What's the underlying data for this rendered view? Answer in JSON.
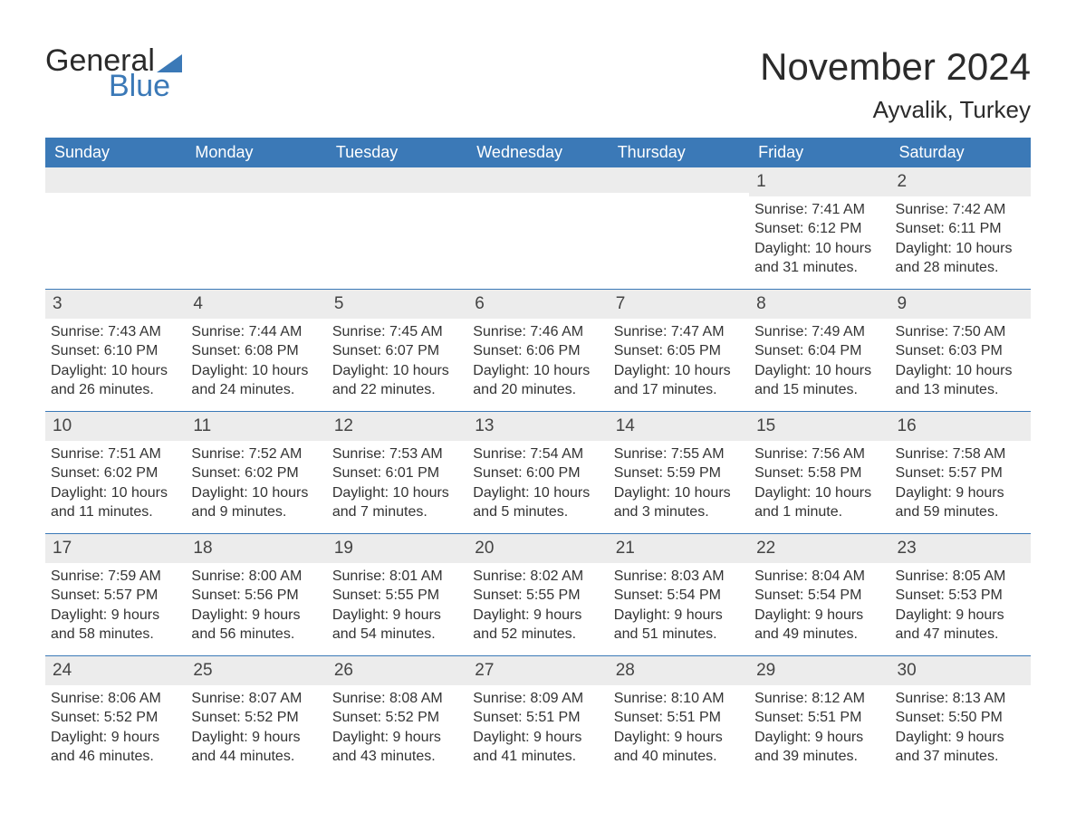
{
  "brand": {
    "name1": "General",
    "name2": "Blue",
    "accent": "#3b79b7"
  },
  "title": "November 2024",
  "location": "Ayvalik, Turkey",
  "colors": {
    "header_bg": "#3b79b7",
    "header_text": "#ffffff",
    "daynum_bg": "#ececec",
    "text": "#333333",
    "page_bg": "#ffffff",
    "row_border": "#3b79b7"
  },
  "weekdays": [
    "Sunday",
    "Monday",
    "Tuesday",
    "Wednesday",
    "Thursday",
    "Friday",
    "Saturday"
  ],
  "weeks": [
    [
      null,
      null,
      null,
      null,
      null,
      {
        "n": "1",
        "sunrise": "7:41 AM",
        "sunset": "6:12 PM",
        "daylight": "10 hours and 31 minutes."
      },
      {
        "n": "2",
        "sunrise": "7:42 AM",
        "sunset": "6:11 PM",
        "daylight": "10 hours and 28 minutes."
      }
    ],
    [
      {
        "n": "3",
        "sunrise": "7:43 AM",
        "sunset": "6:10 PM",
        "daylight": "10 hours and 26 minutes."
      },
      {
        "n": "4",
        "sunrise": "7:44 AM",
        "sunset": "6:08 PM",
        "daylight": "10 hours and 24 minutes."
      },
      {
        "n": "5",
        "sunrise": "7:45 AM",
        "sunset": "6:07 PM",
        "daylight": "10 hours and 22 minutes."
      },
      {
        "n": "6",
        "sunrise": "7:46 AM",
        "sunset": "6:06 PM",
        "daylight": "10 hours and 20 minutes."
      },
      {
        "n": "7",
        "sunrise": "7:47 AM",
        "sunset": "6:05 PM",
        "daylight": "10 hours and 17 minutes."
      },
      {
        "n": "8",
        "sunrise": "7:49 AM",
        "sunset": "6:04 PM",
        "daylight": "10 hours and 15 minutes."
      },
      {
        "n": "9",
        "sunrise": "7:50 AM",
        "sunset": "6:03 PM",
        "daylight": "10 hours and 13 minutes."
      }
    ],
    [
      {
        "n": "10",
        "sunrise": "7:51 AM",
        "sunset": "6:02 PM",
        "daylight": "10 hours and 11 minutes."
      },
      {
        "n": "11",
        "sunrise": "7:52 AM",
        "sunset": "6:02 PM",
        "daylight": "10 hours and 9 minutes."
      },
      {
        "n": "12",
        "sunrise": "7:53 AM",
        "sunset": "6:01 PM",
        "daylight": "10 hours and 7 minutes."
      },
      {
        "n": "13",
        "sunrise": "7:54 AM",
        "sunset": "6:00 PM",
        "daylight": "10 hours and 5 minutes."
      },
      {
        "n": "14",
        "sunrise": "7:55 AM",
        "sunset": "5:59 PM",
        "daylight": "10 hours and 3 minutes."
      },
      {
        "n": "15",
        "sunrise": "7:56 AM",
        "sunset": "5:58 PM",
        "daylight": "10 hours and 1 minute."
      },
      {
        "n": "16",
        "sunrise": "7:58 AM",
        "sunset": "5:57 PM",
        "daylight": "9 hours and 59 minutes."
      }
    ],
    [
      {
        "n": "17",
        "sunrise": "7:59 AM",
        "sunset": "5:57 PM",
        "daylight": "9 hours and 58 minutes."
      },
      {
        "n": "18",
        "sunrise": "8:00 AM",
        "sunset": "5:56 PM",
        "daylight": "9 hours and 56 minutes."
      },
      {
        "n": "19",
        "sunrise": "8:01 AM",
        "sunset": "5:55 PM",
        "daylight": "9 hours and 54 minutes."
      },
      {
        "n": "20",
        "sunrise": "8:02 AM",
        "sunset": "5:55 PM",
        "daylight": "9 hours and 52 minutes."
      },
      {
        "n": "21",
        "sunrise": "8:03 AM",
        "sunset": "5:54 PM",
        "daylight": "9 hours and 51 minutes."
      },
      {
        "n": "22",
        "sunrise": "8:04 AM",
        "sunset": "5:54 PM",
        "daylight": "9 hours and 49 minutes."
      },
      {
        "n": "23",
        "sunrise": "8:05 AM",
        "sunset": "5:53 PM",
        "daylight": "9 hours and 47 minutes."
      }
    ],
    [
      {
        "n": "24",
        "sunrise": "8:06 AM",
        "sunset": "5:52 PM",
        "daylight": "9 hours and 46 minutes."
      },
      {
        "n": "25",
        "sunrise": "8:07 AM",
        "sunset": "5:52 PM",
        "daylight": "9 hours and 44 minutes."
      },
      {
        "n": "26",
        "sunrise": "8:08 AM",
        "sunset": "5:52 PM",
        "daylight": "9 hours and 43 minutes."
      },
      {
        "n": "27",
        "sunrise": "8:09 AM",
        "sunset": "5:51 PM",
        "daylight": "9 hours and 41 minutes."
      },
      {
        "n": "28",
        "sunrise": "8:10 AM",
        "sunset": "5:51 PM",
        "daylight": "9 hours and 40 minutes."
      },
      {
        "n": "29",
        "sunrise": "8:12 AM",
        "sunset": "5:51 PM",
        "daylight": "9 hours and 39 minutes."
      },
      {
        "n": "30",
        "sunrise": "8:13 AM",
        "sunset": "5:50 PM",
        "daylight": "9 hours and 37 minutes."
      }
    ]
  ],
  "labels": {
    "sunrise": "Sunrise: ",
    "sunset": "Sunset: ",
    "daylight": "Daylight: "
  }
}
